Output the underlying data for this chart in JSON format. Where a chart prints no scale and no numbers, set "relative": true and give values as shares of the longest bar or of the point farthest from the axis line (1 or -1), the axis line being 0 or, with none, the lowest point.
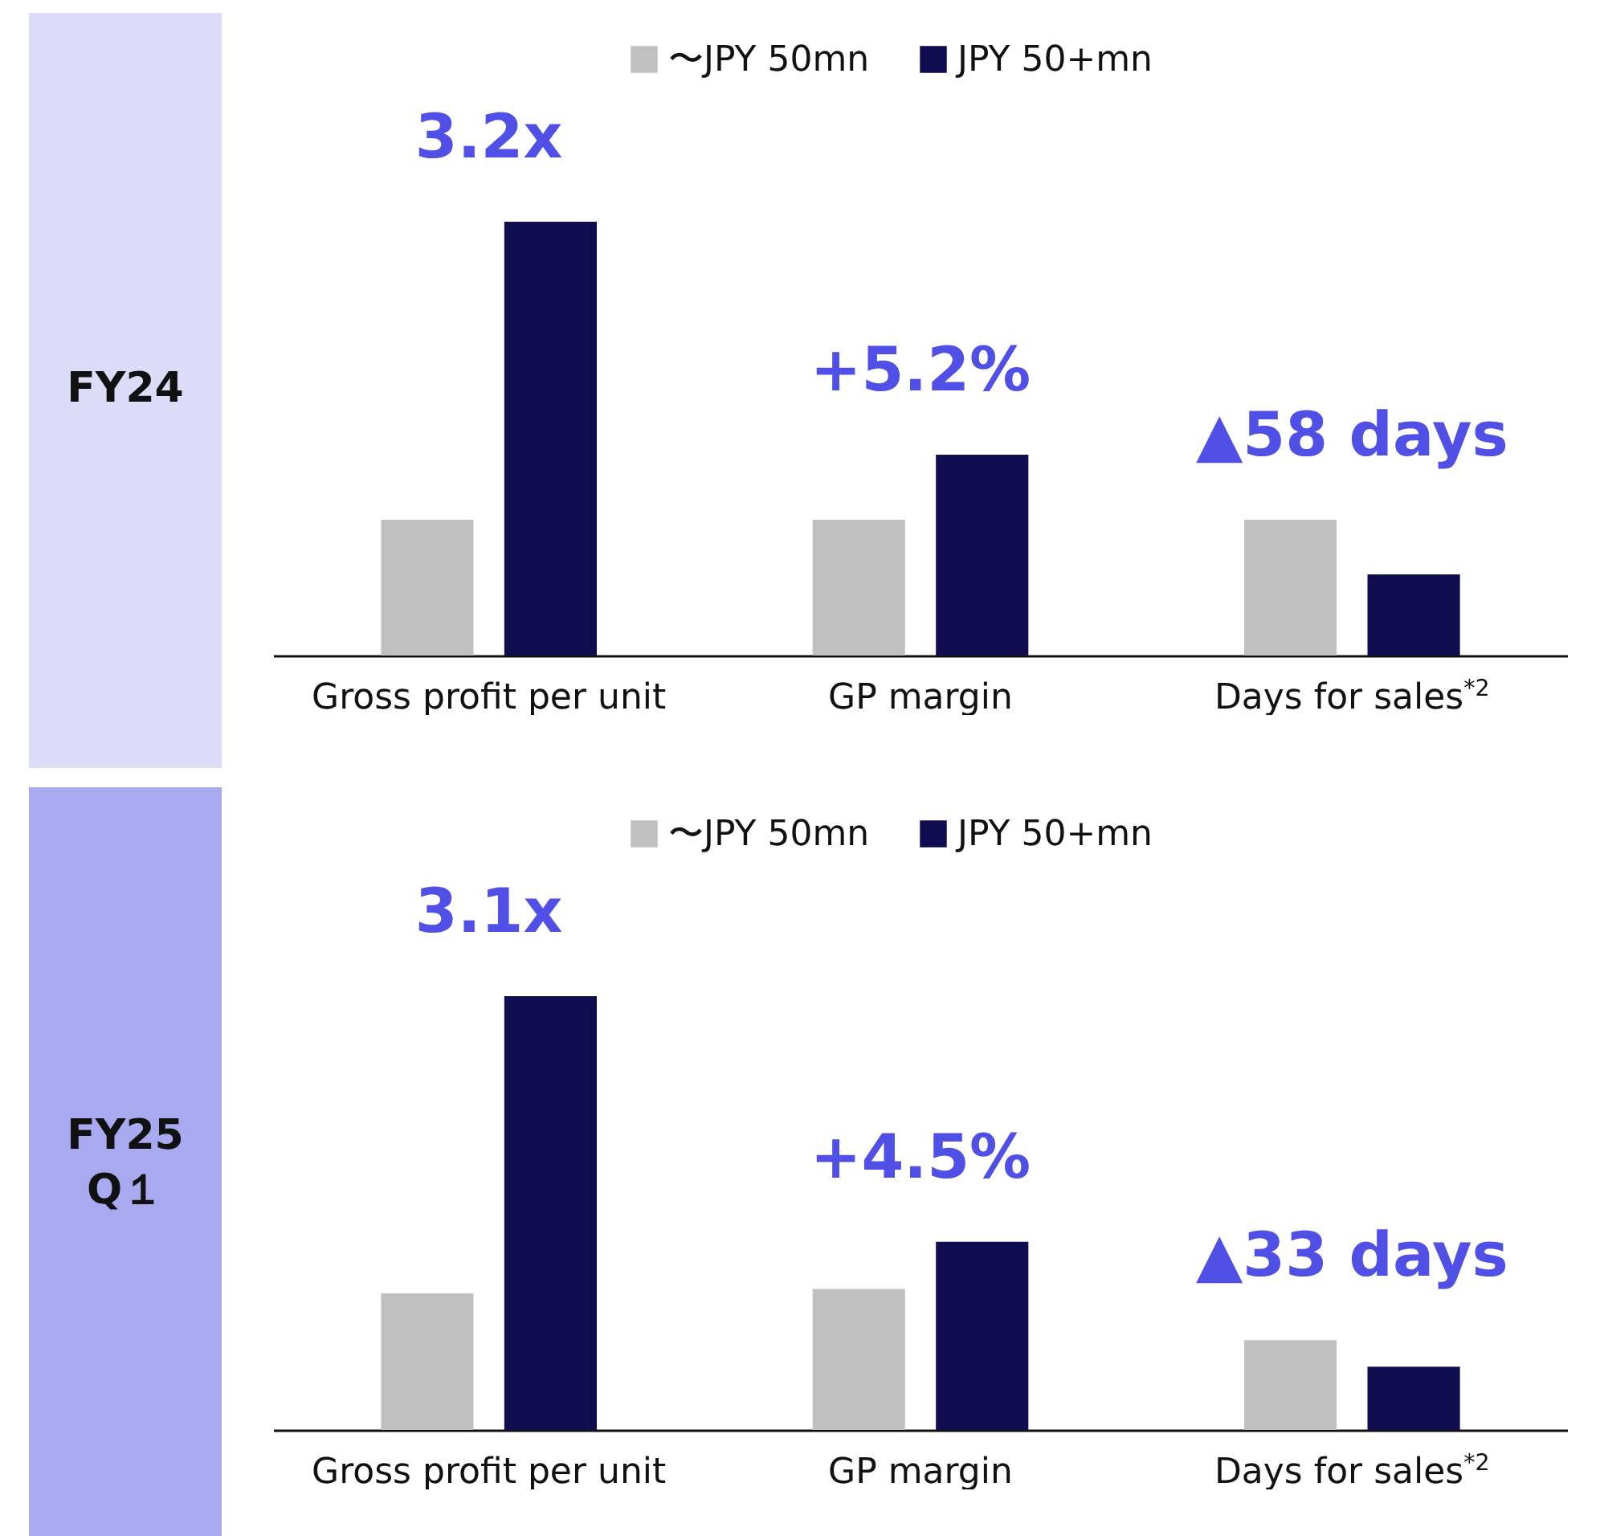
{
  "chart_data": [
    {
      "type": "bar",
      "title": "FY24",
      "relative": true,
      "legend": "top",
      "categories": [
        "Gross profit per unit",
        "GP margin",
        "Days for sales$^{*2}$"
      ],
      "series": [
        {
          "name": "〜JPY 50mn",
          "color": "#c0c0c0",
          "values": [
            0.313,
            0.313,
            0.313
          ]
        },
        {
          "name": "JPY 50+mn",
          "color": "#0f0c50",
          "values": [
            1,
            0.463,
            0.187
          ]
        }
      ],
      "annotations": [
        "3.2x",
        "+5.2%",
        "▲58 days"
      ]
    },
    {
      "type": "bar",
      "title": "FY25\nQ１",
      "relative": true,
      "legend": "top",
      "categories": [
        "Gross profit per unit",
        "GP margin",
        "Days for sales$^{*2}$"
      ],
      "series": [
        {
          "name": "〜JPY 50mn",
          "color": "#c0c0c0",
          "values": [
            0.315,
            0.325,
            0.207
          ]
        },
        {
          "name": "JPY 50+mn",
          "color": "#0f0c50",
          "values": [
            1,
            0.434,
            0.146
          ]
        }
      ],
      "annotations": [
        "3.1x",
        "+4.5%",
        "▲33 days"
      ]
    }
  ]
}
